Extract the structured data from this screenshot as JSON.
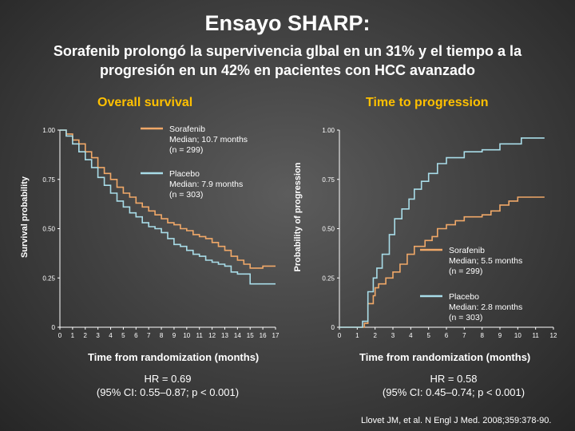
{
  "title": "Ensayo SHARP:",
  "subtitle_line1": "Sorafenib prolongó la supervivencia glbal en un 31% y el tiempo a la",
  "subtitle_line2": "progresión en un  42% en pacientes con HCC avanzado",
  "reference": "Llovet JM, et al. N Engl J Med. 2008;359:378-90.",
  "colors": {
    "sorafenib": "#f0a868",
    "placebo": "#a8dce8",
    "title_accent": "#ffc000"
  },
  "chart_data": [
    {
      "type": "line",
      "title": "Overall survival",
      "xlabel": "Time from randomization (months)",
      "ylabel": "Survival probability",
      "xlim": [
        0,
        17
      ],
      "ylim": [
        0,
        1
      ],
      "x_ticks": [
        "0",
        "1",
        "2",
        "3",
        "4",
        "5",
        "6",
        "7",
        "8",
        "9",
        "10",
        "11",
        "12",
        "13",
        "14",
        "15",
        "16",
        "17"
      ],
      "y_ticks": [
        "0",
        "0.25",
        "0.50",
        "0.75",
        "1.00"
      ],
      "series": [
        {
          "name": "Sorafenib",
          "legend_lines": [
            "Sorafenib",
            "Median; 10.7 months",
            "(n = 299)"
          ],
          "points": [
            [
              0,
              1.0
            ],
            [
              0.5,
              0.98
            ],
            [
              1,
              0.95
            ],
            [
              1.5,
              0.93
            ],
            [
              2,
              0.89
            ],
            [
              2.5,
              0.86
            ],
            [
              3,
              0.81
            ],
            [
              3.5,
              0.78
            ],
            [
              4,
              0.75
            ],
            [
              4.5,
              0.71
            ],
            [
              5,
              0.68
            ],
            [
              5.5,
              0.66
            ],
            [
              6,
              0.63
            ],
            [
              6.5,
              0.61
            ],
            [
              7,
              0.59
            ],
            [
              7.5,
              0.57
            ],
            [
              8,
              0.55
            ],
            [
              8.5,
              0.53
            ],
            [
              9,
              0.52
            ],
            [
              9.5,
              0.5
            ],
            [
              10,
              0.49
            ],
            [
              10.5,
              0.47
            ],
            [
              11,
              0.46
            ],
            [
              11.5,
              0.45
            ],
            [
              12,
              0.43
            ],
            [
              12.5,
              0.41
            ],
            [
              13,
              0.39
            ],
            [
              13.5,
              0.36
            ],
            [
              14,
              0.34
            ],
            [
              14.5,
              0.32
            ],
            [
              15,
              0.3
            ],
            [
              15.5,
              0.3
            ],
            [
              16,
              0.31
            ],
            [
              16.5,
              0.31
            ],
            [
              17,
              0.31
            ]
          ]
        },
        {
          "name": "Placebo",
          "legend_lines": [
            "Placebo",
            "Median: 7.9 months",
            "(n = 303)"
          ],
          "points": [
            [
              0,
              1.0
            ],
            [
              0.5,
              0.97
            ],
            [
              1,
              0.93
            ],
            [
              1.5,
              0.89
            ],
            [
              2,
              0.85
            ],
            [
              2.5,
              0.81
            ],
            [
              3,
              0.76
            ],
            [
              3.5,
              0.72
            ],
            [
              4,
              0.68
            ],
            [
              4.5,
              0.64
            ],
            [
              5,
              0.61
            ],
            [
              5.5,
              0.58
            ],
            [
              6,
              0.56
            ],
            [
              6.5,
              0.53
            ],
            [
              7,
              0.51
            ],
            [
              7.5,
              0.5
            ],
            [
              8,
              0.48
            ],
            [
              8.5,
              0.45
            ],
            [
              9,
              0.42
            ],
            [
              9.5,
              0.41
            ],
            [
              10,
              0.39
            ],
            [
              10.5,
              0.37
            ],
            [
              11,
              0.36
            ],
            [
              11.5,
              0.34
            ],
            [
              12,
              0.33
            ],
            [
              12.5,
              0.32
            ],
            [
              13,
              0.31
            ],
            [
              13.5,
              0.28
            ],
            [
              14,
              0.27
            ],
            [
              14.5,
              0.27
            ],
            [
              15,
              0.22
            ],
            [
              15.5,
              0.22
            ],
            [
              16,
              0.22
            ],
            [
              16.5,
              0.22
            ],
            [
              17,
              0.22
            ]
          ]
        }
      ],
      "annotation_lines": [
        "HR = 0.69",
        "(95% CI: 0.55–0.87; p < 0.001)"
      ]
    },
    {
      "type": "line",
      "title": "Time to progression",
      "xlabel": "Time from randomization (months)",
      "ylabel": "Probability of progression",
      "xlim": [
        0,
        12
      ],
      "ylim": [
        0,
        1
      ],
      "x_ticks": [
        "0",
        "1",
        "2",
        "3",
        "4",
        "5",
        "6",
        "7",
        "8",
        "9",
        "10",
        "11",
        "12"
      ],
      "y_ticks": [
        "0",
        "0.25",
        "0.50",
        "0.75",
        "1.00"
      ],
      "series": [
        {
          "name": "Sorafenib",
          "legend_lines": [
            "Sorafenib",
            "Median; 5.5 months",
            "(n = 299)"
          ],
          "points": [
            [
              0,
              0
            ],
            [
              1,
              0
            ],
            [
              1.4,
              0.02
            ],
            [
              1.6,
              0.12
            ],
            [
              1.9,
              0.16
            ],
            [
              2,
              0.2
            ],
            [
              2.2,
              0.22
            ],
            [
              2.6,
              0.25
            ],
            [
              3,
              0.28
            ],
            [
              3.4,
              0.32
            ],
            [
              3.8,
              0.37
            ],
            [
              4.2,
              0.41
            ],
            [
              4.8,
              0.44
            ],
            [
              5.2,
              0.46
            ],
            [
              5.5,
              0.5
            ],
            [
              6,
              0.52
            ],
            [
              6.5,
              0.54
            ],
            [
              7,
              0.56
            ],
            [
              7.5,
              0.56
            ],
            [
              8,
              0.57
            ],
            [
              8.5,
              0.59
            ],
            [
              9,
              0.62
            ],
            [
              9.5,
              0.64
            ],
            [
              10,
              0.66
            ],
            [
              11,
              0.66
            ],
            [
              11.5,
              0.66
            ]
          ]
        },
        {
          "name": "Placebo",
          "legend_lines": [
            "Placebo",
            "Median: 2.8 months",
            "(n = 303)"
          ],
          "points": [
            [
              0,
              0
            ],
            [
              1,
              0
            ],
            [
              1.3,
              0.03
            ],
            [
              1.6,
              0.18
            ],
            [
              1.9,
              0.25
            ],
            [
              2.1,
              0.3
            ],
            [
              2.4,
              0.37
            ],
            [
              2.8,
              0.47
            ],
            [
              3.1,
              0.55
            ],
            [
              3.5,
              0.6
            ],
            [
              3.9,
              0.65
            ],
            [
              4.2,
              0.7
            ],
            [
              4.6,
              0.74
            ],
            [
              5,
              0.78
            ],
            [
              5.5,
              0.83
            ],
            [
              6,
              0.86
            ],
            [
              7,
              0.89
            ],
            [
              8,
              0.9
            ],
            [
              9,
              0.93
            ],
            [
              10.2,
              0.96
            ],
            [
              11.5,
              0.96
            ]
          ]
        }
      ],
      "annotation_lines": [
        "HR = 0.58",
        "(95% CI: 0.45–0.74; p < 0.001)"
      ]
    }
  ]
}
